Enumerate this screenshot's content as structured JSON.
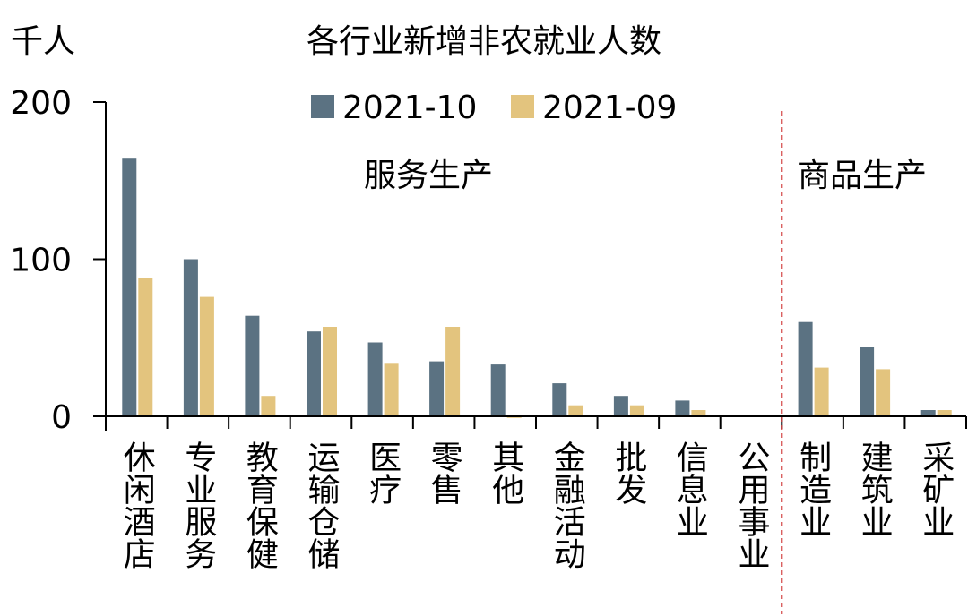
{
  "chart_data": {
    "type": "bar",
    "title": "各行业新增非农就业人数",
    "ylabel": "千人",
    "xlabel": "",
    "ylim": [
      0,
      200
    ],
    "yticks": [
      0,
      100,
      200
    ],
    "categories": [
      "休闲酒店",
      "专业服务",
      "教育保健",
      "运输仓储",
      "医疗",
      "零售",
      "其他",
      "金融活动",
      "批发",
      "信息业",
      "公用事业",
      "制造业",
      "建筑业",
      "采矿业"
    ],
    "series": [
      {
        "name": "2021-10",
        "color": "#5b7282",
        "values": [
          164,
          100,
          64,
          54,
          47,
          35,
          33,
          21,
          13,
          10,
          0,
          60,
          44,
          4
        ]
      },
      {
        "name": "2021-09",
        "color": "#e3c47e",
        "values": [
          88,
          76,
          13,
          57,
          34,
          57,
          -1,
          7,
          7,
          4,
          0,
          31,
          30,
          4
        ]
      }
    ],
    "groups": [
      {
        "label": "服务生产"
      },
      {
        "label": "商品生产"
      }
    ],
    "divider_color": "#cc2222",
    "legend_position": "top",
    "grid": false
  }
}
